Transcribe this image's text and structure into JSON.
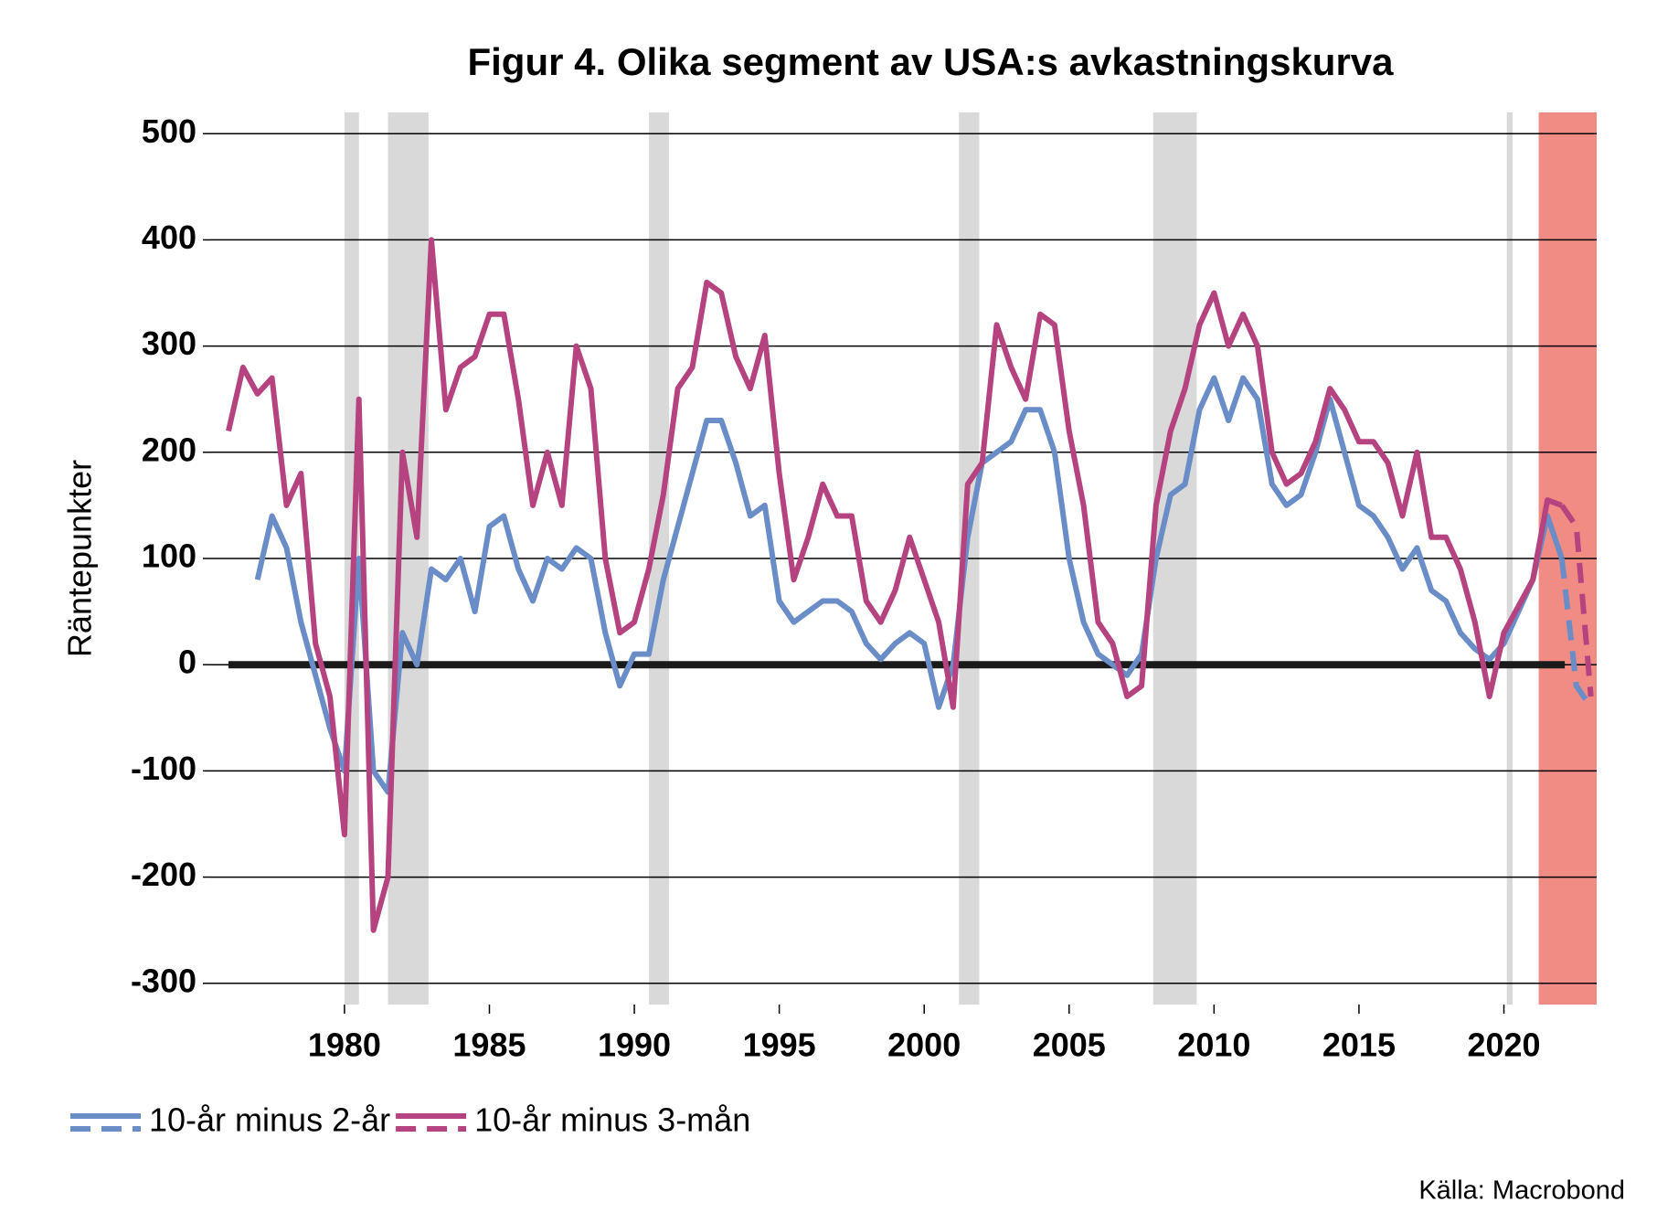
{
  "chart_data": {
    "type": "line",
    "title": "Figur 4. Olika segment av USA:s avkastningskurva",
    "y_label": "Räntepunkter",
    "source": "Källa: Macrobond",
    "x": [
      1976.0,
      1976.5,
      1977.0,
      1977.5,
      1978.0,
      1978.5,
      1979.0,
      1979.5,
      1980.0,
      1980.5,
      1981.0,
      1981.5,
      1982.0,
      1982.5,
      1983.0,
      1983.5,
      1984.0,
      1984.5,
      1985.0,
      1985.5,
      1986.0,
      1986.5,
      1987.0,
      1987.5,
      1988.0,
      1988.5,
      1989.0,
      1989.5,
      1990.0,
      1990.5,
      1991.0,
      1991.5,
      1992.0,
      1992.5,
      1993.0,
      1993.5,
      1994.0,
      1994.5,
      1995.0,
      1995.5,
      1996.0,
      1996.5,
      1997.0,
      1997.5,
      1998.0,
      1998.5,
      1999.0,
      1999.5,
      2000.0,
      2000.5,
      2001.0,
      2001.5,
      2002.0,
      2002.5,
      2003.0,
      2003.5,
      2004.0,
      2004.5,
      2005.0,
      2005.5,
      2006.0,
      2006.5,
      2007.0,
      2007.5,
      2008.0,
      2008.5,
      2009.0,
      2009.5,
      2010.0,
      2010.5,
      2011.0,
      2011.5,
      2012.0,
      2012.5,
      2013.0,
      2013.5,
      2014.0,
      2014.5,
      2015.0,
      2015.5,
      2016.0,
      2016.5,
      2017.0,
      2017.5,
      2018.0,
      2018.5,
      2019.0,
      2019.5,
      2020.0,
      2020.5,
      2021.0,
      2021.5,
      2022.0,
      2022.5,
      2023.0
    ],
    "series": [
      {
        "name": "10-år minus 2-år",
        "color": "#6a8cc7",
        "dash_from": 2022.0,
        "values": [
          null,
          null,
          80,
          140,
          110,
          40,
          -10,
          -60,
          -100,
          100,
          -100,
          -120,
          30,
          0,
          90,
          80,
          100,
          50,
          130,
          140,
          90,
          60,
          100,
          90,
          110,
          100,
          30,
          -20,
          10,
          10,
          80,
          130,
          180,
          230,
          230,
          190,
          140,
          150,
          60,
          40,
          50,
          60,
          60,
          50,
          20,
          5,
          20,
          30,
          20,
          -40,
          0,
          120,
          190,
          200,
          210,
          240,
          240,
          200,
          100,
          40,
          10,
          0,
          -10,
          10,
          100,
          160,
          170,
          240,
          270,
          230,
          270,
          250,
          170,
          150,
          160,
          200,
          250,
          200,
          150,
          140,
          120,
          90,
          110,
          70,
          60,
          30,
          15,
          5,
          20,
          50,
          80,
          140,
          100,
          -20,
          -40
        ]
      },
      {
        "name": "10-år minus 3-mån",
        "color": "#b5437f",
        "dash_from": 2022.0,
        "values": [
          220,
          280,
          255,
          270,
          150,
          180,
          20,
          -30,
          -160,
          250,
          -250,
          -200,
          200,
          120,
          400,
          240,
          280,
          290,
          330,
          330,
          250,
          150,
          200,
          150,
          300,
          260,
          100,
          30,
          40,
          90,
          160,
          260,
          280,
          360,
          350,
          290,
          260,
          310,
          180,
          80,
          120,
          170,
          140,
          140,
          60,
          40,
          70,
          120,
          80,
          40,
          -40,
          170,
          190,
          320,
          280,
          250,
          330,
          320,
          220,
          150,
          40,
          20,
          -30,
          -20,
          150,
          220,
          260,
          320,
          350,
          300,
          330,
          300,
          200,
          170,
          180,
          210,
          260,
          240,
          210,
          210,
          190,
          140,
          200,
          120,
          120,
          90,
          40,
          -30,
          30,
          55,
          80,
          155,
          150,
          130,
          -30
        ]
      }
    ],
    "shaded_periods": [
      {
        "from": 1980.0,
        "to": 1980.5,
        "color": "#d9d9d9"
      },
      {
        "from": 1981.5,
        "to": 1982.9,
        "color": "#d9d9d9"
      },
      {
        "from": 1990.5,
        "to": 1991.2,
        "color": "#d9d9d9"
      },
      {
        "from": 2001.2,
        "to": 2001.9,
        "color": "#d9d9d9"
      },
      {
        "from": 2007.9,
        "to": 2009.4,
        "color": "#d9d9d9"
      },
      {
        "from": 2020.1,
        "to": 2020.3,
        "color": "#d9d9d9"
      },
      {
        "from": 2021.2,
        "to": 2023.2,
        "color": "#f08c84"
      }
    ],
    "zero_line": {
      "y": 0,
      "from": 1976.0,
      "to": 2022.1
    },
    "xlim": [
      1975.4,
      2023.2
    ],
    "xticks": [
      1980,
      1985,
      1990,
      1995,
      2000,
      2005,
      2010,
      2015,
      2020
    ],
    "ylim": [
      -320,
      520
    ],
    "yticks": [
      -300,
      -200,
      -100,
      0,
      100,
      200,
      300,
      400,
      500
    ],
    "grid": true
  }
}
